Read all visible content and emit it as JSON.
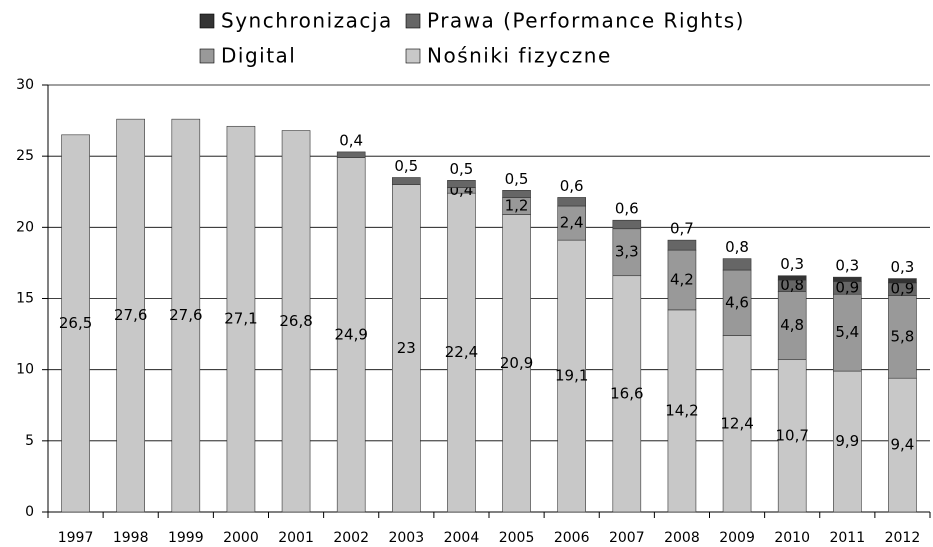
{
  "chart_data": {
    "type": "stacked_bar",
    "categories": [
      "1997",
      "1998",
      "1999",
      "2000",
      "2001",
      "2002",
      "2003",
      "2004",
      "2005",
      "2006",
      "2007",
      "2008",
      "2009",
      "2010",
      "2011",
      "2012"
    ],
    "series": [
      {
        "name": "Nośniki fizyczne",
        "color": "#c8c8c8",
        "values": [
          26.5,
          27.6,
          27.6,
          27.1,
          26.8,
          24.9,
          23,
          22.4,
          20.9,
          19.1,
          16.6,
          14.2,
          12.4,
          10.7,
          9.9,
          9.4
        ],
        "value_labels": [
          "26,5",
          "27,6",
          "27,6",
          "27,1",
          "26,8",
          "24,9",
          "23",
          "22,4",
          "20,9",
          "19,1",
          "16,6",
          "14,2",
          "12,4",
          "10,7",
          "9,9",
          "9,4"
        ]
      },
      {
        "name": "Digital",
        "color": "#999999",
        "values": [
          null,
          null,
          null,
          null,
          null,
          null,
          null,
          0.4,
          1.2,
          2.4,
          3.3,
          4.2,
          4.6,
          4.8,
          5.4,
          5.8
        ],
        "value_labels": [
          null,
          null,
          null,
          null,
          null,
          null,
          null,
          "0,4",
          "1,2",
          "2,4",
          "3,3",
          "4,2",
          "4,6",
          "4,8",
          "5,4",
          "5,8"
        ]
      },
      {
        "name": "Prawa (Performance Rights)",
        "color": "#666666",
        "values": [
          null,
          null,
          null,
          null,
          null,
          0.4,
          0.5,
          0.5,
          0.5,
          0.6,
          0.6,
          0.7,
          0.8,
          0.8,
          0.9,
          0.9
        ],
        "value_labels": [
          null,
          null,
          null,
          null,
          null,
          "0,4",
          "0,5",
          "0,5",
          "0,5",
          "0,6",
          "0,6",
          "0,7",
          "0,8",
          "0,8",
          "0,9",
          "0,9"
        ]
      },
      {
        "name": "Synchronizacja",
        "color": "#333333",
        "values": [
          null,
          null,
          null,
          null,
          null,
          null,
          null,
          null,
          null,
          null,
          null,
          null,
          null,
          0.3,
          0.3,
          0.3
        ],
        "value_labels": [
          null,
          null,
          null,
          null,
          null,
          null,
          null,
          null,
          null,
          null,
          null,
          null,
          null,
          "0,3",
          "0,3",
          "0,3"
        ]
      }
    ],
    "ylim": [
      0,
      30
    ],
    "yticks": [
      0,
      5,
      10,
      15,
      20,
      25,
      30
    ],
    "grid": true
  }
}
